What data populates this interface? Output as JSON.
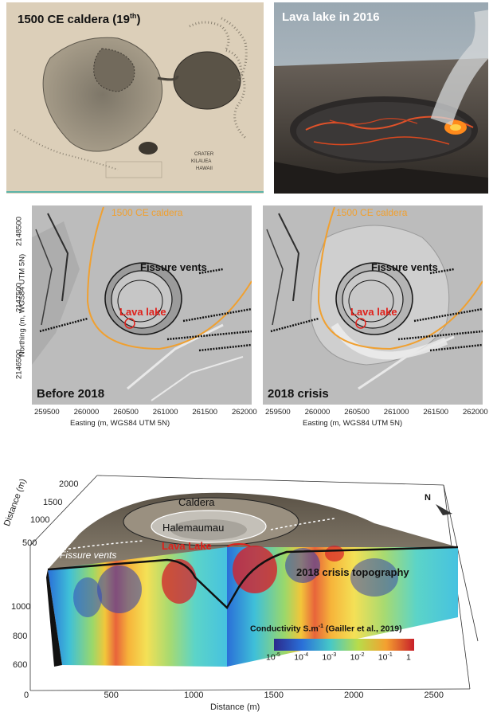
{
  "top_left": {
    "title": "1500 CE caldera (19",
    "title_sup": "th",
    "title_end": ")",
    "map_text": [
      "CRATER",
      "KILAUEA",
      "HAWAII"
    ]
  },
  "top_right": {
    "title": "Lava lake in 2016"
  },
  "maps": {
    "ylabel": "Northing (m, WGS84 UTM 5N)",
    "xlabel": "Easting (m, WGS84 UTM 5N)",
    "y_ticks": [
      "2148500",
      "2147500",
      "2146500"
    ],
    "x_ticks": [
      "259500",
      "260000",
      "260500",
      "261000",
      "261500",
      "262000"
    ],
    "caldera_label": "1500 CE caldera",
    "vents_label": "Fissure vents",
    "lake_label": "Lava lake",
    "left_caption": "Before 2018",
    "right_caption": "2018 crisis",
    "colors": {
      "caldera": "#f0a030",
      "lake": "#e0201a"
    }
  },
  "block": {
    "ylabel": "Distance (m)",
    "xlabel": "Distance (m)",
    "y_ticks_back": [
      "2000",
      "1500",
      "1000",
      "500"
    ],
    "z_ticks": [
      "1000",
      "800",
      "600"
    ],
    "x_ticks": [
      "0",
      "500",
      "1000",
      "1500",
      "2000",
      "2500"
    ],
    "north": "N",
    "caldera": "Caldera",
    "halemaumau": "Halemaumau",
    "lava_lake": "Lava Lake",
    "fissure_vents": "Fissure vents",
    "topo": "2018 crisis topography",
    "colorbar_title": "Conductivity S.m",
    "colorbar_sup": "-1",
    "colorbar_ref": " (Gailler et al., 2019)",
    "colorbar_ticks": [
      {
        "base": "10",
        "exp": "-5"
      },
      {
        "base": "10",
        "exp": "-4"
      },
      {
        "base": "10",
        "exp": "-3"
      },
      {
        "base": "10",
        "exp": "-2"
      },
      {
        "base": "10",
        "exp": "-1"
      },
      {
        "base": "1",
        "exp": ""
      }
    ]
  }
}
